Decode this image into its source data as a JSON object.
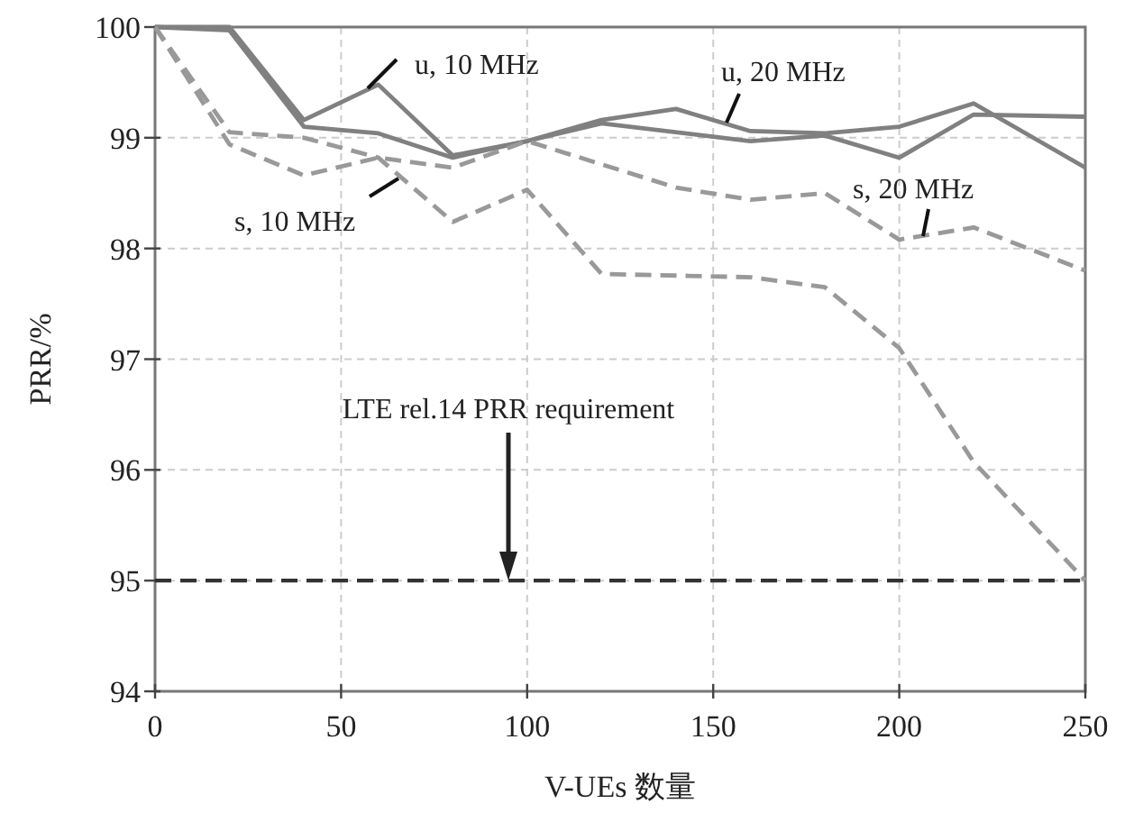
{
  "chart_data": {
    "type": "line",
    "xlabel": "V-UEs 数量",
    "ylabel": "PRR/%",
    "xlim": [
      0,
      250
    ],
    "xticks": [
      0,
      50,
      100,
      150,
      200,
      250
    ],
    "ylim": [
      94,
      100
    ],
    "yticks": [
      94,
      95,
      96,
      97,
      98,
      99,
      100
    ],
    "grid": true,
    "series": [
      {
        "color": "#808080",
        "line_style": "solid",
        "x": [
          0,
          20,
          40,
          60,
          80,
          100,
          120,
          160,
          180,
          200,
          220,
          250
        ],
        "values": [
          100,
          100,
          99.16,
          99.48,
          98.84,
          98.97,
          99.13,
          98.97,
          99.02,
          98.82,
          99.21,
          99.19
        ]
      },
      {
        "color": "#808080",
        "line_style": "solid",
        "x": [
          0,
          20,
          40,
          60,
          80,
          100,
          120,
          140,
          160,
          180,
          200,
          220,
          250
        ],
        "values": [
          100,
          99.97,
          99.1,
          99.04,
          98.82,
          98.97,
          99.16,
          99.26,
          99.06,
          99.04,
          99.1,
          99.31,
          98.73
        ]
      },
      {
        "color": "#999999",
        "line_style": "dashed",
        "x": [
          0,
          20,
          40,
          60,
          80,
          100,
          120,
          160,
          180,
          200,
          220,
          250
        ],
        "values": [
          100,
          99.05,
          99.0,
          98.82,
          98.24,
          98.53,
          97.77,
          97.74,
          97.65,
          97.1,
          96.07,
          95.0
        ]
      },
      {
        "color": "#999999",
        "line_style": "dashed",
        "x": [
          0,
          20,
          40,
          60,
          80,
          100,
          140,
          160,
          180,
          200,
          220,
          250
        ],
        "values": [
          100,
          98.94,
          98.66,
          98.82,
          98.73,
          98.97,
          98.55,
          98.44,
          98.5,
          98.08,
          98.19,
          97.8
        ]
      }
    ],
    "ref_lines": [
      {
        "axis": "y",
        "value": 95,
        "color": "#333333",
        "line_style": "dashed"
      }
    ],
    "annotations": [
      "u, 10 MHz",
      "u, 20 MHz",
      "s, 10 MHz",
      "s, 20 MHz",
      "LTE rel.14 PRR requirement"
    ]
  }
}
